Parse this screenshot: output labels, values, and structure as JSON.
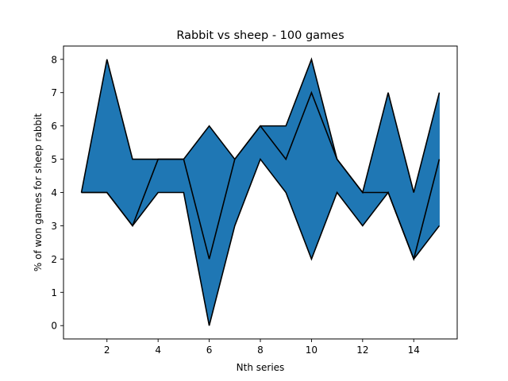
{
  "chart_data": {
    "type": "area",
    "title": "Rabbit vs sheep - 100 games",
    "xlabel": "Nth series",
    "ylabel": "% of won games for sheep rabbit",
    "x": [
      1,
      2,
      3,
      4,
      5,
      6,
      7,
      8,
      9,
      10,
      11,
      12,
      13,
      14,
      15
    ],
    "series": [
      {
        "values": [
          4,
          8,
          5,
          5,
          5,
          6,
          5,
          6,
          6,
          8,
          5,
          4,
          7,
          4,
          7
        ]
      },
      {
        "values": [
          4,
          4,
          3,
          5,
          5,
          2,
          5,
          6,
          5,
          7,
          5,
          4,
          4,
          2,
          5
        ]
      },
      {
        "values": [
          4,
          4,
          3,
          4,
          4,
          0,
          3,
          5,
          4,
          2,
          4,
          3,
          4,
          2,
          3
        ]
      }
    ],
    "fill_between": [
      "series 0",
      "series 2"
    ],
    "xlim": [
      0.3,
      15.7
    ],
    "ylim": [
      -0.4,
      8.4
    ],
    "xticks": [
      2,
      4,
      6,
      8,
      10,
      12,
      14
    ],
    "yticks": [
      0,
      1,
      2,
      3,
      4,
      5,
      6,
      7,
      8
    ],
    "grid": false,
    "fill_color": "#1f77b4",
    "line_color": "#000000"
  }
}
